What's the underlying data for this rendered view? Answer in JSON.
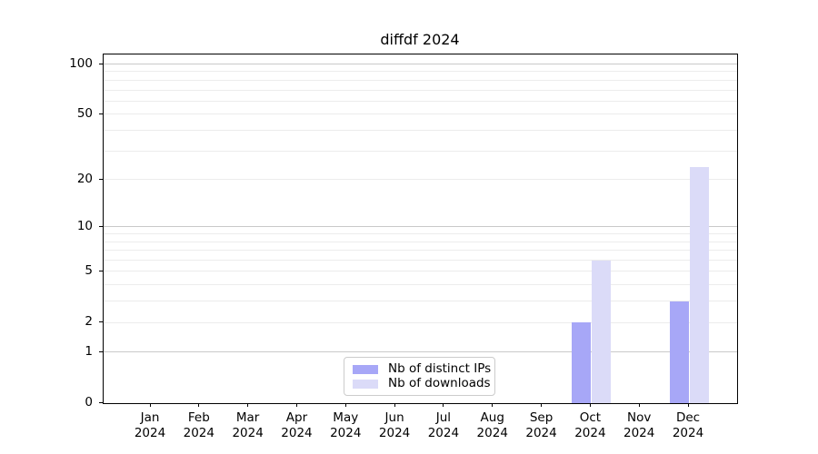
{
  "chart_data": {
    "type": "bar",
    "title": "diffdf 2024",
    "categories": [
      "Jan 2024",
      "Feb 2024",
      "Mar 2024",
      "Apr 2024",
      "May 2024",
      "Jun 2024",
      "Jul 2024",
      "Aug 2024",
      "Sep 2024",
      "Oct 2024",
      "Nov 2024",
      "Dec 2024"
    ],
    "series": [
      {
        "name": "Nb of distinct IPs",
        "color": "#a7a7f7",
        "values": [
          0,
          0,
          0,
          0,
          0,
          0,
          0,
          0,
          0,
          2,
          0,
          3
        ]
      },
      {
        "name": "Nb of downloads",
        "color": "#dbdbf8",
        "values": [
          0,
          0,
          0,
          0,
          0,
          0,
          0,
          0,
          0,
          6,
          0,
          24
        ]
      }
    ],
    "yscale": "log1p",
    "ylim": [
      0,
      114
    ],
    "yticks": [
      {
        "value": 0,
        "label": "0"
      },
      {
        "value": 1,
        "label": "1"
      },
      {
        "value": 2,
        "label": "2"
      },
      {
        "value": 5,
        "label": "5"
      },
      {
        "value": 10,
        "label": "10"
      },
      {
        "value": 20,
        "label": "20"
      },
      {
        "value": 50,
        "label": "50"
      },
      {
        "value": 100,
        "label": "100"
      }
    ],
    "gridlines": {
      "major_values": [
        1,
        10,
        100
      ],
      "minor_values": [
        2,
        3,
        4,
        5,
        6,
        7,
        8,
        9,
        20,
        30,
        40,
        50,
        60,
        70,
        80,
        90
      ],
      "major_color": "#c9c9c9",
      "minor_color": "#ececec"
    },
    "grid": true,
    "legend_position": "bottom-center-inside",
    "xlabel": "",
    "ylabel": ""
  }
}
